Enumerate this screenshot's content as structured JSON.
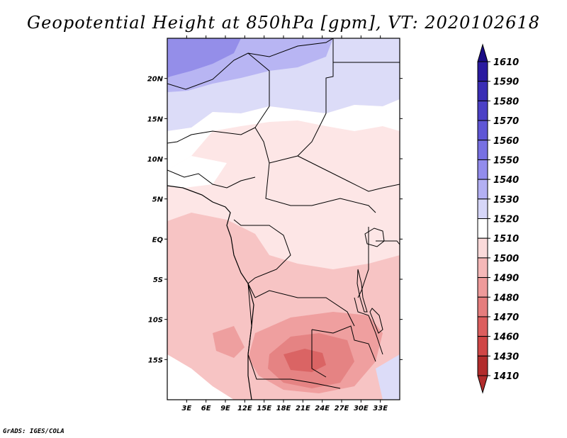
{
  "title": "Geopotential Height at 850hPa [gpm], VT: 2020102618",
  "credit": "GrADS: IGES/COLA",
  "map": {
    "lon_range": [
      0,
      36
    ],
    "lat_range": [
      -20,
      25
    ],
    "lon_ticks": [
      {
        "value": 3,
        "label": "3E"
      },
      {
        "value": 6,
        "label": "6E"
      },
      {
        "value": 9,
        "label": "9E"
      },
      {
        "value": 12,
        "label": "12E"
      },
      {
        "value": 15,
        "label": "15E"
      },
      {
        "value": 18,
        "label": "18E"
      },
      {
        "value": 21,
        "label": "21E"
      },
      {
        "value": 24,
        "label": "24E"
      },
      {
        "value": 27,
        "label": "27E"
      },
      {
        "value": 30,
        "label": "30E"
      },
      {
        "value": 33,
        "label": "33E"
      }
    ],
    "lat_ticks": [
      {
        "value": 20,
        "label": "20N"
      },
      {
        "value": 15,
        "label": "15N"
      },
      {
        "value": 10,
        "label": "10N"
      },
      {
        "value": 5,
        "label": "5N"
      },
      {
        "value": 0,
        "label": "EQ"
      },
      {
        "value": -5,
        "label": "5S"
      },
      {
        "value": -10,
        "label": "10S"
      },
      {
        "value": -15,
        "label": "15S"
      }
    ]
  },
  "colorbar": {
    "levels": [
      {
        "label": "1610",
        "color": "#1a0c85"
      },
      {
        "label": "1590",
        "color": "#2a1aa0"
      },
      {
        "label": "1580",
        "color": "#3a2db5"
      },
      {
        "label": "1570",
        "color": "#4b40c6"
      },
      {
        "label": "1560",
        "color": "#5f56d6"
      },
      {
        "label": "1550",
        "color": "#7770e2"
      },
      {
        "label": "1540",
        "color": "#928cec"
      },
      {
        "label": "1530",
        "color": "#b3b0f3"
      },
      {
        "label": "1520",
        "color": "#d6d6f8"
      },
      {
        "label": "1510",
        "color": "#ffffff"
      },
      {
        "label": "1500",
        "color": "#fadada"
      },
      {
        "label": "1490",
        "color": "#f5b8b8"
      },
      {
        "label": "1480",
        "color": "#ee9a9a"
      },
      {
        "label": "1470",
        "color": "#e57d7d"
      },
      {
        "label": "1460",
        "color": "#dc5e5e"
      },
      {
        "label": "1430",
        "color": "#d04646"
      },
      {
        "label": "1410",
        "color": "#b22c2c"
      }
    ]
  }
}
